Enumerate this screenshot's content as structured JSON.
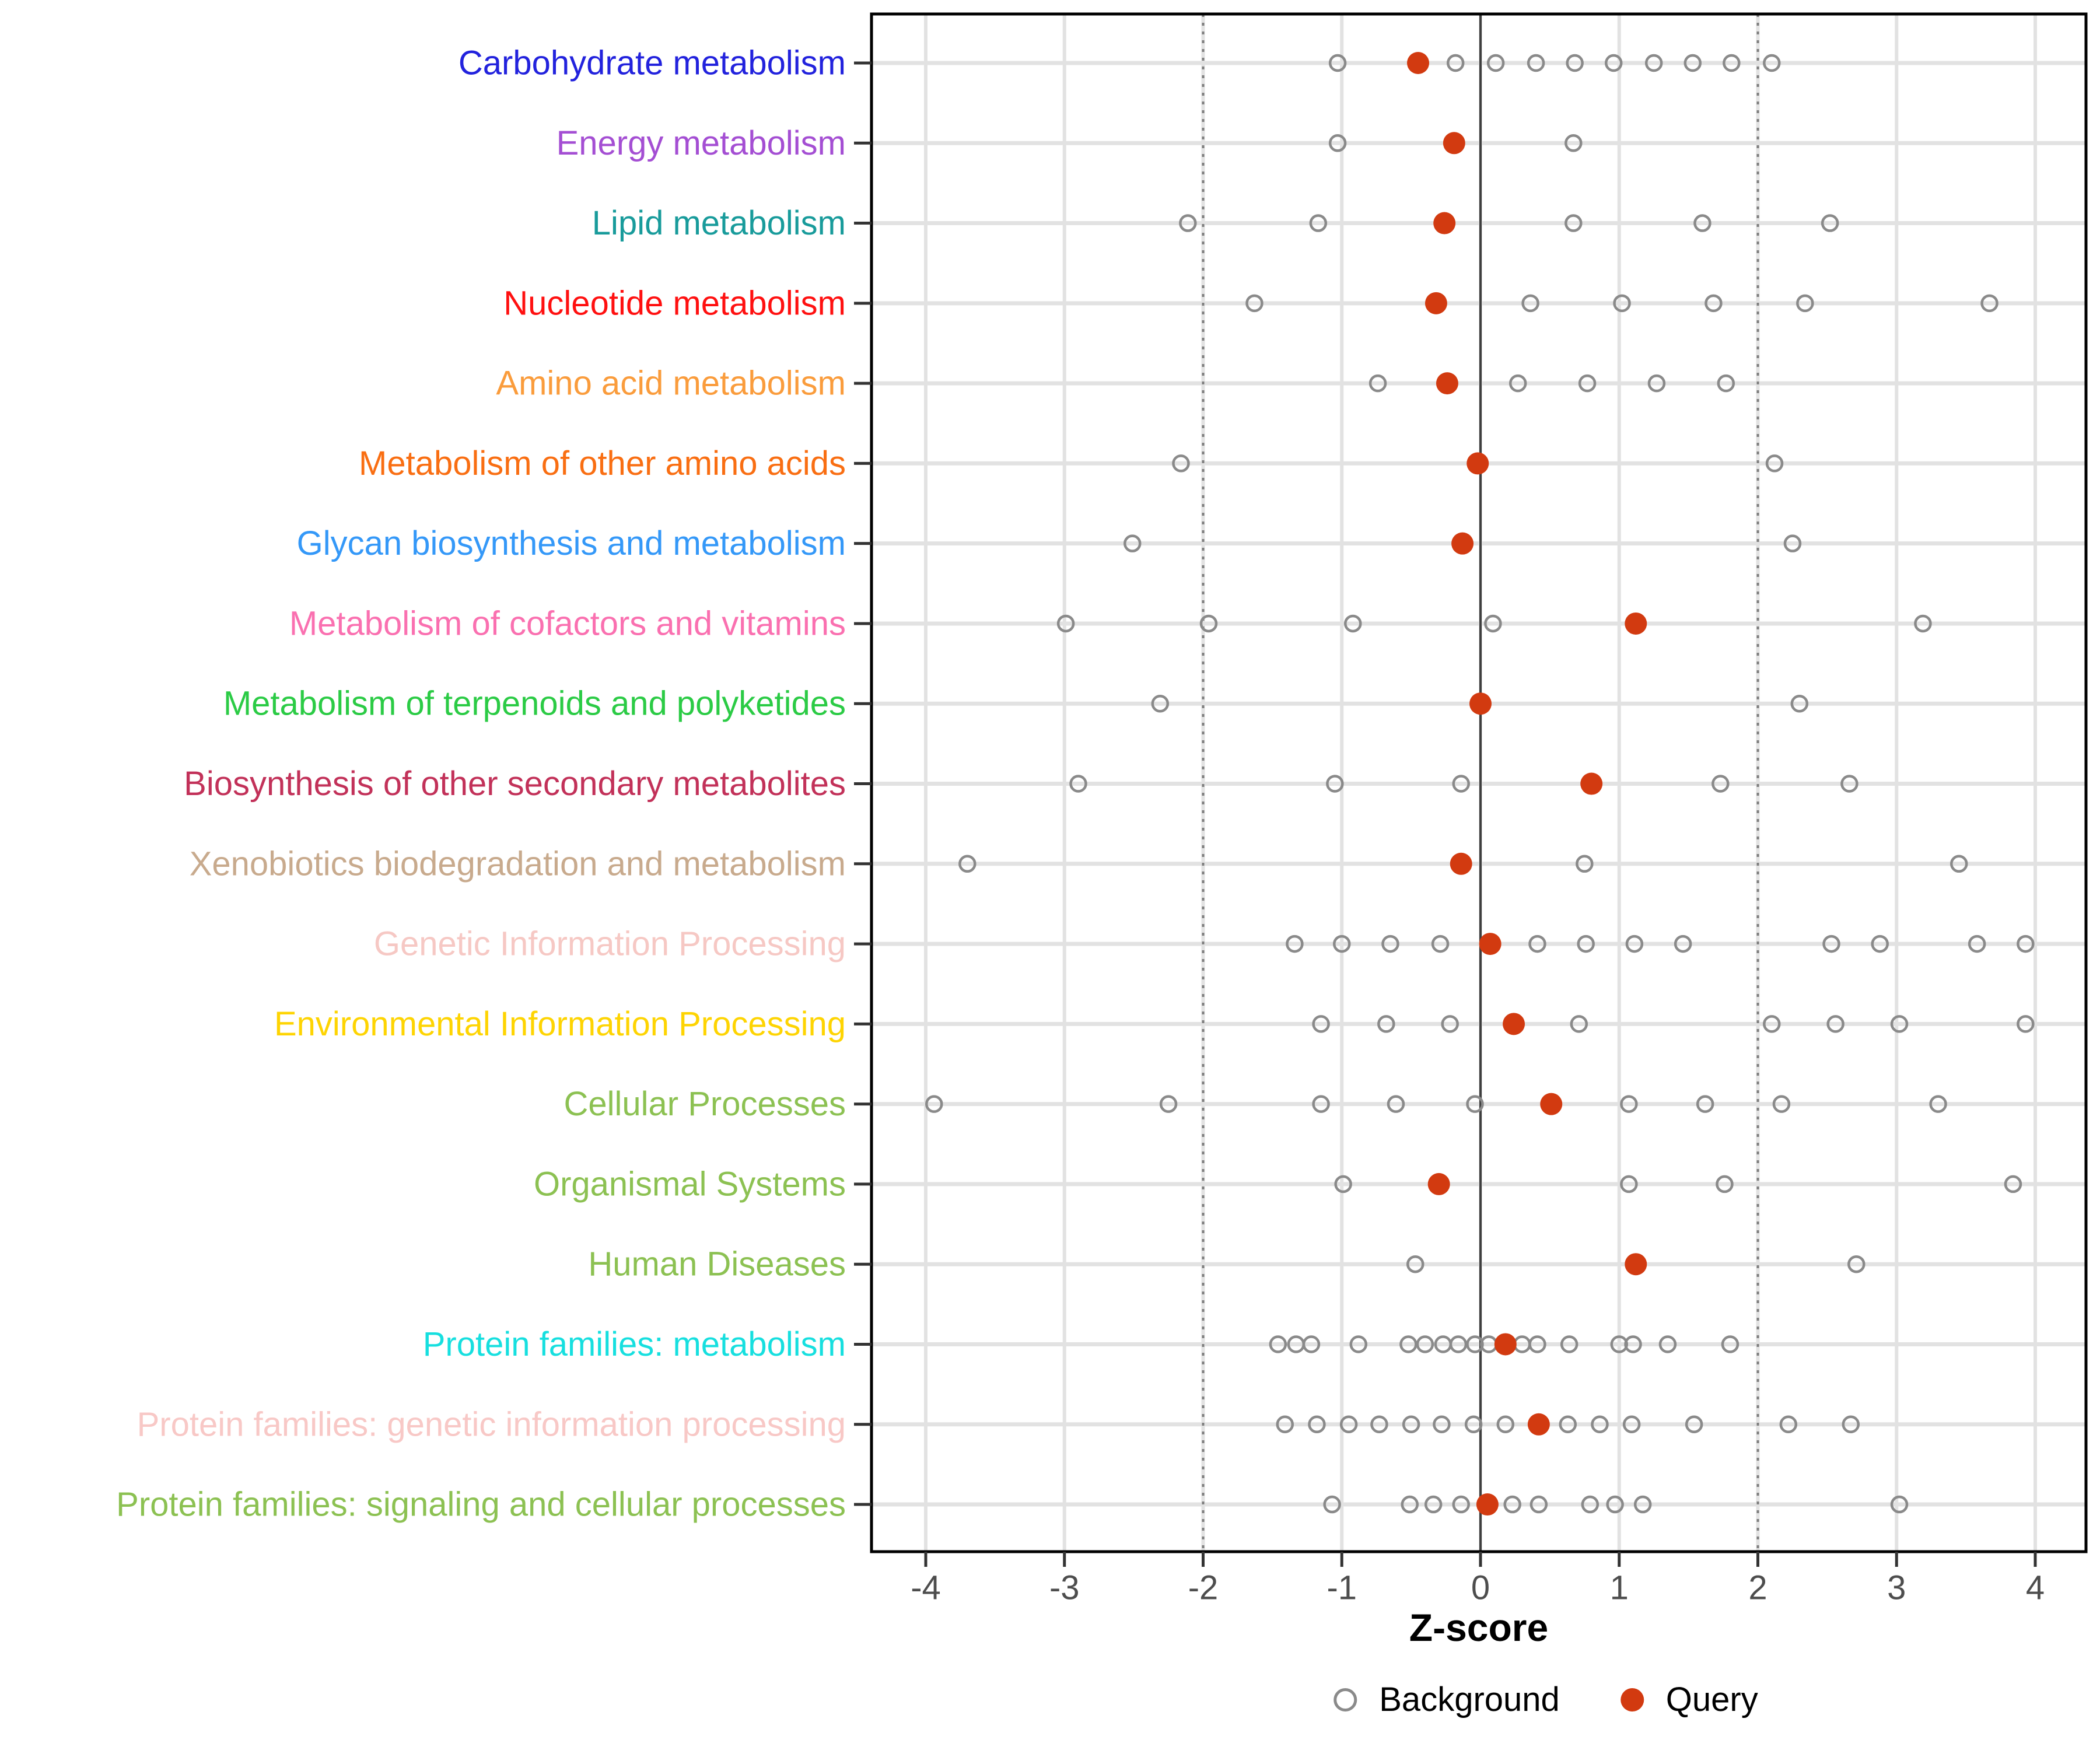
{
  "chart_data": {
    "type": "scatter",
    "title": "",
    "xlabel": "Z-score",
    "ylabel": "",
    "xlim": [
      -4.39,
      4.39
    ],
    "x_ticks": [
      -4,
      -3,
      -2,
      -1,
      0,
      1,
      2,
      3,
      4
    ],
    "grid": "on",
    "reference_lines": {
      "solid_at": 0,
      "dashed_at": [
        -2,
        2
      ]
    },
    "legend_position": "bottom",
    "legend": {
      "background_label": "Background",
      "query_label": "Query",
      "background_color": "#8a8a8a",
      "query_color": "#D23A10"
    },
    "series_note": "background = open gray circles, query = filled red circle, values are Z-scores",
    "categories": [
      {
        "label": "Carbohydrate metabolism",
        "color": "#2222DD",
        "background": [
          -1.03,
          -0.18,
          0.11,
          0.4,
          0.68,
          0.96,
          1.25,
          1.53,
          1.81,
          2.1
        ],
        "query": -0.45
      },
      {
        "label": "Energy metabolism",
        "color": "#A44ED3",
        "background": [
          -1.03,
          0.67
        ],
        "query": -0.19
      },
      {
        "label": "Lipid metabolism",
        "color": "#189B9B",
        "background": [
          -2.11,
          -1.17,
          0.67,
          1.6,
          2.52
        ],
        "query": -0.26
      },
      {
        "label": "Nucleotide metabolism",
        "color": "#FF1010",
        "background": [
          -1.63,
          0.36,
          1.02,
          1.68,
          2.34,
          3.67
        ],
        "query": -0.32
      },
      {
        "label": "Amino acid metabolism",
        "color": "#FA9C3C",
        "background": [
          -0.74,
          0.27,
          0.77,
          1.27,
          1.77
        ],
        "query": -0.24
      },
      {
        "label": "Metabolism of other amino acids",
        "color": "#F96E12",
        "background": [
          -2.16,
          2.12
        ],
        "query": -0.02
      },
      {
        "label": "Glycan biosynthesis and metabolism",
        "color": "#3498F8",
        "background": [
          -2.51,
          2.25
        ],
        "query": -0.13
      },
      {
        "label": "Metabolism of cofactors and vitamins",
        "color": "#FA70B0",
        "background": [
          -2.99,
          -1.96,
          -0.92,
          0.09,
          3.19
        ],
        "query": 1.12
      },
      {
        "label": "Metabolism of terpenoids and polyketides",
        "color": "#2BCB45",
        "background": [
          -2.31,
          2.3
        ],
        "query": 0.0
      },
      {
        "label": "Biosynthesis of other secondary metabolites",
        "color": "#C23159",
        "background": [
          -2.9,
          -1.05,
          -0.14,
          1.73,
          2.66
        ],
        "query": 0.8
      },
      {
        "label": "Xenobiotics biodegradation and metabolism",
        "color": "#C8AA8D",
        "background": [
          -3.7,
          0.75,
          3.45
        ],
        "query": -0.14
      },
      {
        "label": "Genetic Information Processing",
        "color": "#F6C8C4",
        "background": [
          -1.34,
          -1.0,
          -0.65,
          -0.29,
          0.41,
          0.76,
          1.11,
          1.46,
          2.53,
          2.88,
          3.58,
          3.93
        ],
        "query": 0.07
      },
      {
        "label": "Environmental Information Processing",
        "color": "#FED402",
        "background": [
          -1.15,
          -0.68,
          -0.22,
          0.71,
          2.1,
          2.56,
          3.02,
          3.93
        ],
        "query": 0.24
      },
      {
        "label": "Cellular Processes",
        "color": "#8CC152",
        "background": [
          -3.94,
          -2.25,
          -1.15,
          -0.61,
          -0.04,
          1.07,
          1.62,
          2.17,
          3.3
        ],
        "query": 0.51
      },
      {
        "label": "Organismal Systems",
        "color": "#8CC152",
        "background": [
          -0.99,
          1.07,
          1.76,
          3.84
        ],
        "query": -0.3
      },
      {
        "label": "Human Diseases",
        "color": "#8CC152",
        "background": [
          -0.47,
          2.71
        ],
        "query": 1.12
      },
      {
        "label": "Protein families: metabolism",
        "color": "#16DFDF",
        "background": [
          -1.46,
          -1.33,
          -1.22,
          -0.88,
          -0.52,
          -0.4,
          -0.27,
          -0.16,
          -0.04,
          0.06,
          0.3,
          0.41,
          0.64,
          1.0,
          1.1,
          1.35,
          1.8
        ],
        "query": 0.18
      },
      {
        "label": "Protein families: genetic information processing",
        "color": "#F8C8C6",
        "background": [
          -1.41,
          -1.18,
          -0.95,
          -0.73,
          -0.5,
          -0.28,
          -0.05,
          0.18,
          0.63,
          0.86,
          1.09,
          1.54,
          2.22,
          2.67
        ],
        "query": 0.42
      },
      {
        "label": "Protein families: signaling and cellular processes",
        "color": "#8CC152",
        "background": [
          -1.07,
          -0.51,
          -0.34,
          -0.14,
          0.23,
          0.42,
          0.79,
          0.97,
          1.17,
          3.02
        ],
        "query": 0.05
      }
    ]
  }
}
